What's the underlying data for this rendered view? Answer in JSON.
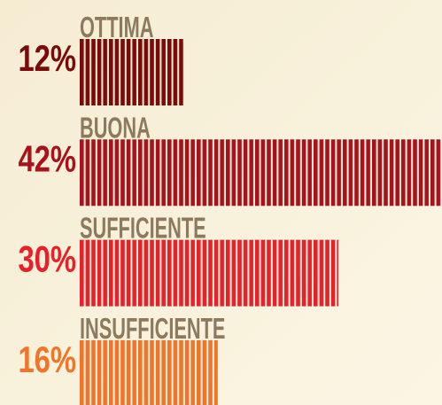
{
  "chart_data": {
    "type": "bar",
    "orientation": "horizontal",
    "categories": [
      "OTTIMA",
      "BUONA",
      "SUFFICIENTE",
      "INSUFFICIENTE"
    ],
    "values": [
      12,
      42,
      30,
      16
    ],
    "value_labels": [
      "12%",
      "42%",
      "30%",
      "16%"
    ],
    "colors": [
      "#7b0b0b",
      "#a8121c",
      "#e8202a",
      "#f0742a"
    ],
    "label_color": "#8c7a5e"
  }
}
